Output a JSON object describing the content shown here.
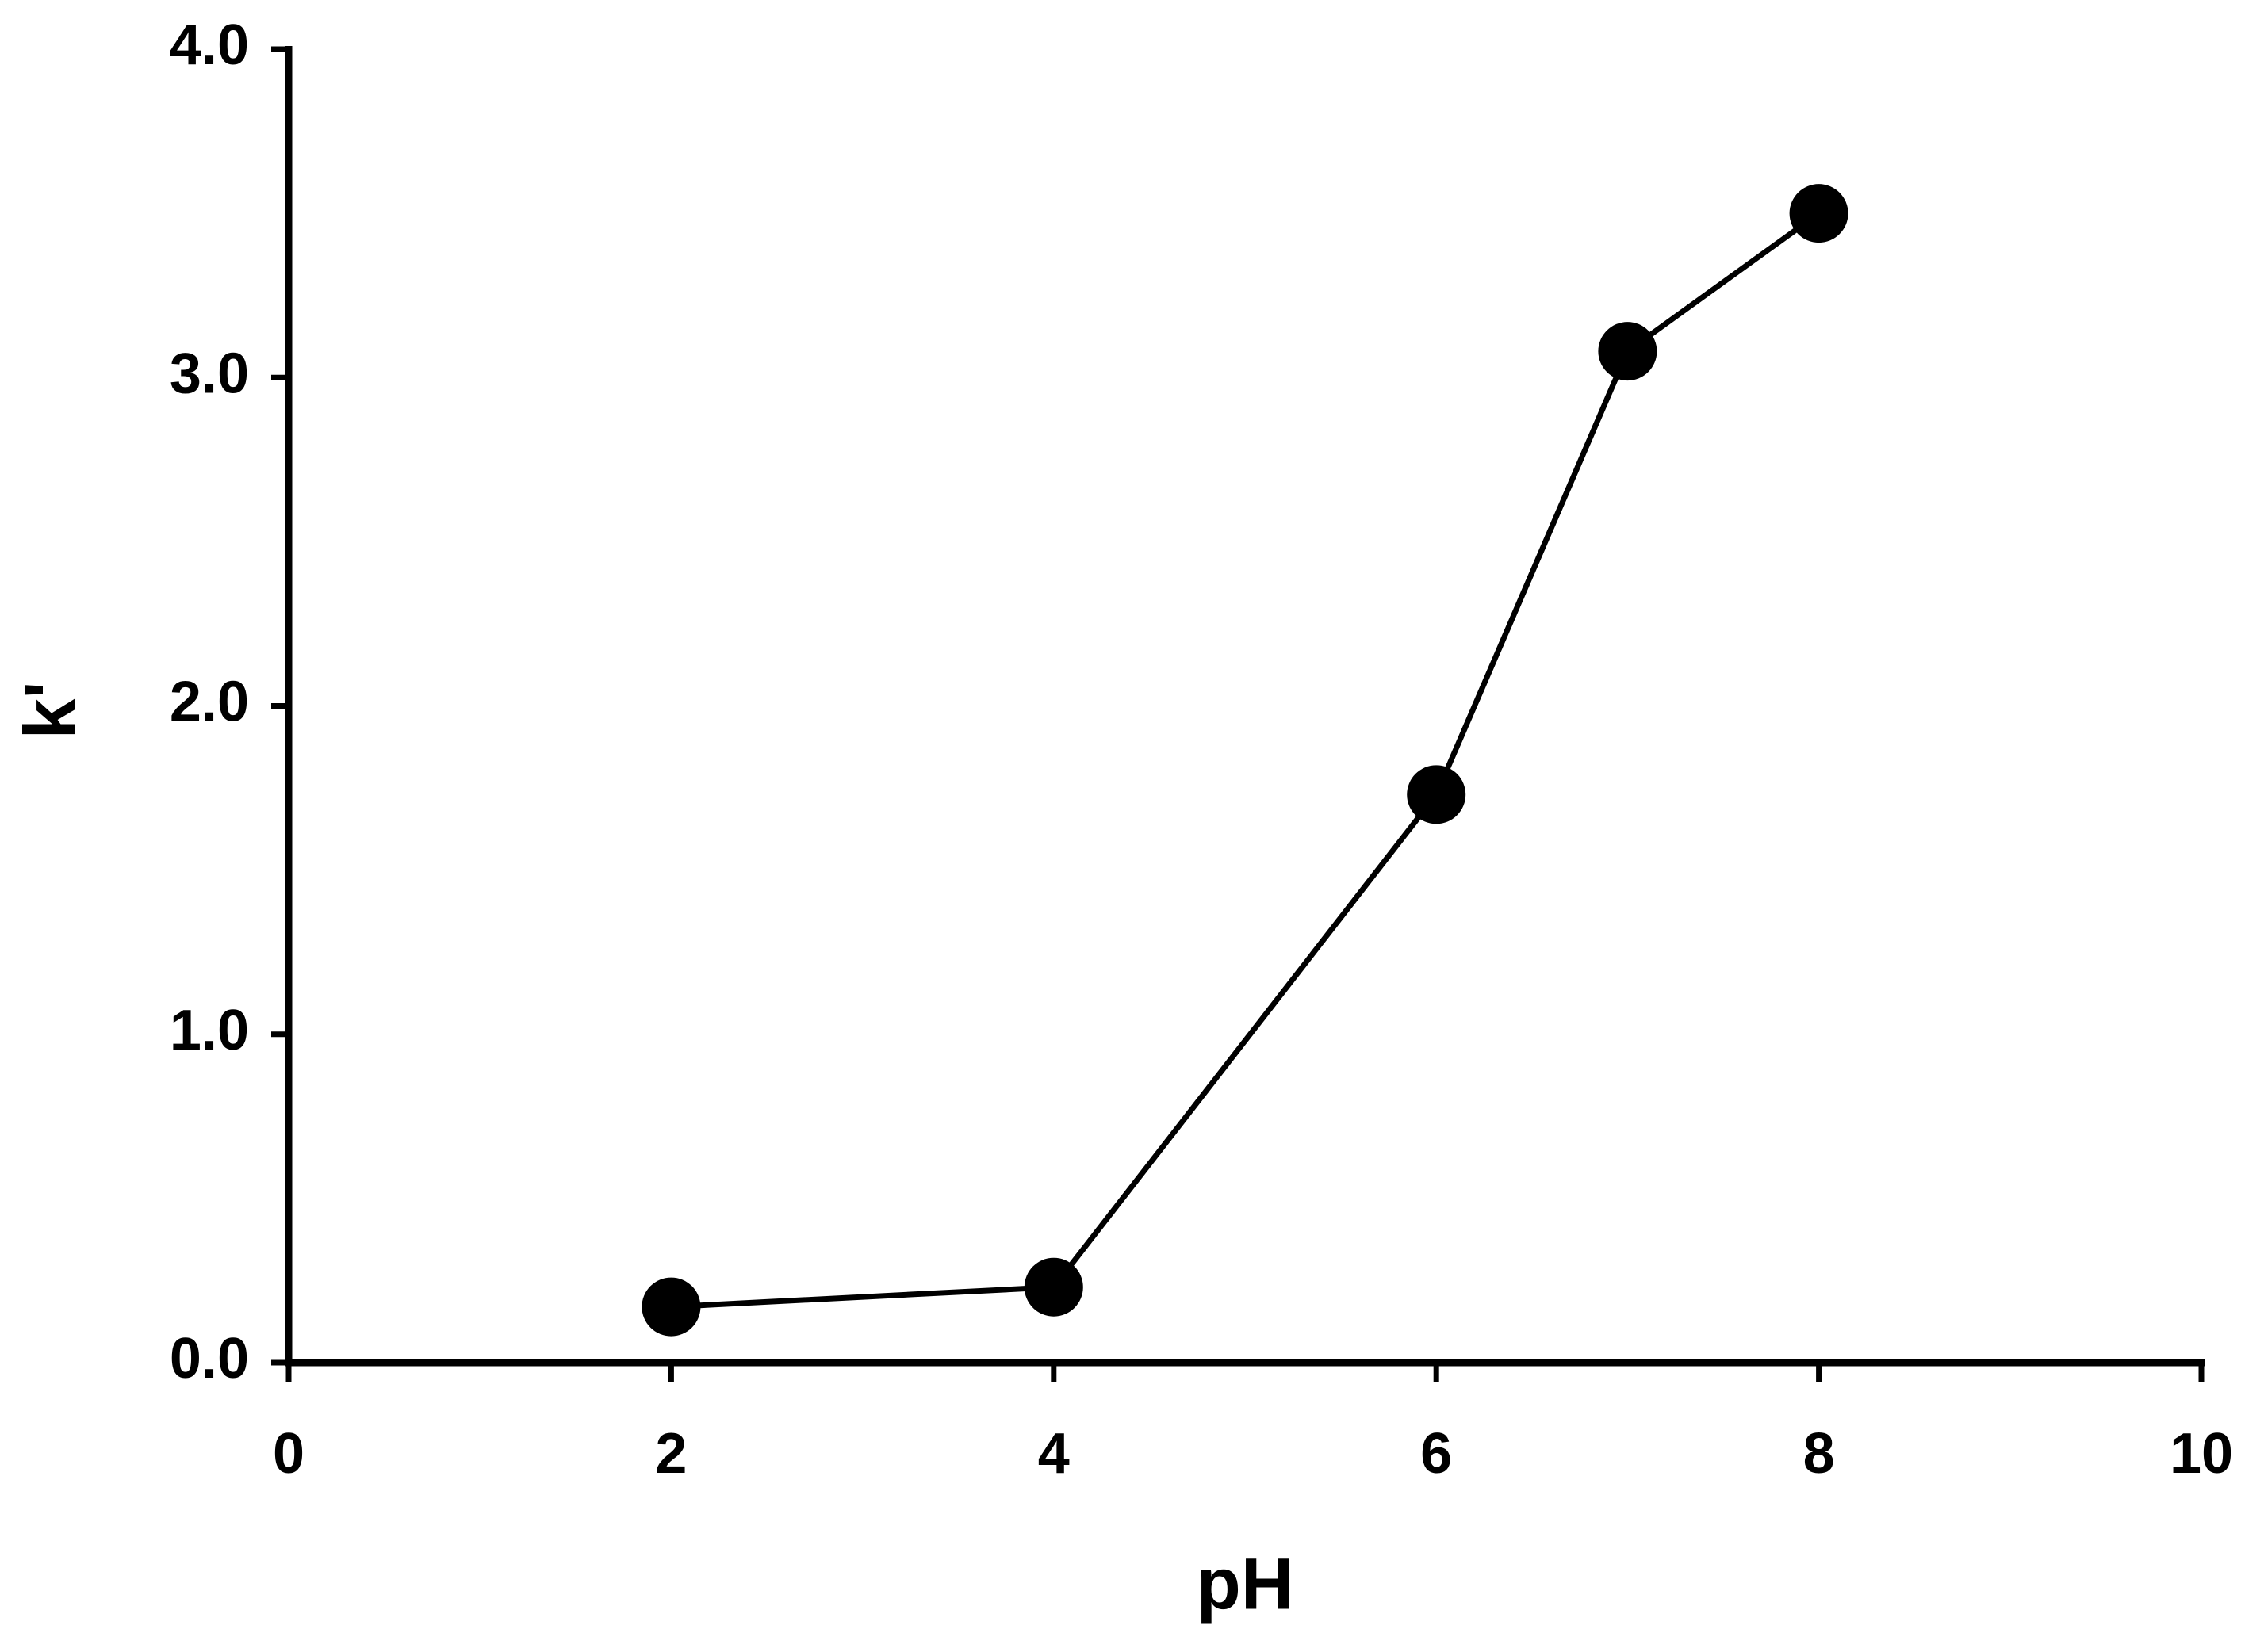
{
  "chart_data": {
    "type": "line",
    "x_label": "pH",
    "y_label": "k'",
    "x": [
      2,
      4,
      6,
      7,
      8
    ],
    "series": [
      {
        "values": [
          0.17,
          0.23,
          1.73,
          3.08,
          3.5
        ],
        "color": "#000000"
      }
    ],
    "xlim": [
      0,
      10
    ],
    "xticks": [
      0,
      2,
      4,
      6,
      8,
      10
    ],
    "ylim": [
      0,
      4
    ],
    "yticks": [
      {
        "value": 0,
        "label": "0.0"
      },
      {
        "value": 1,
        "label": "1.0"
      },
      {
        "value": 2,
        "label": "2.0"
      },
      {
        "value": 3,
        "label": "3.0"
      },
      {
        "value": 4,
        "label": "4.0"
      }
    ],
    "grid": false
  }
}
